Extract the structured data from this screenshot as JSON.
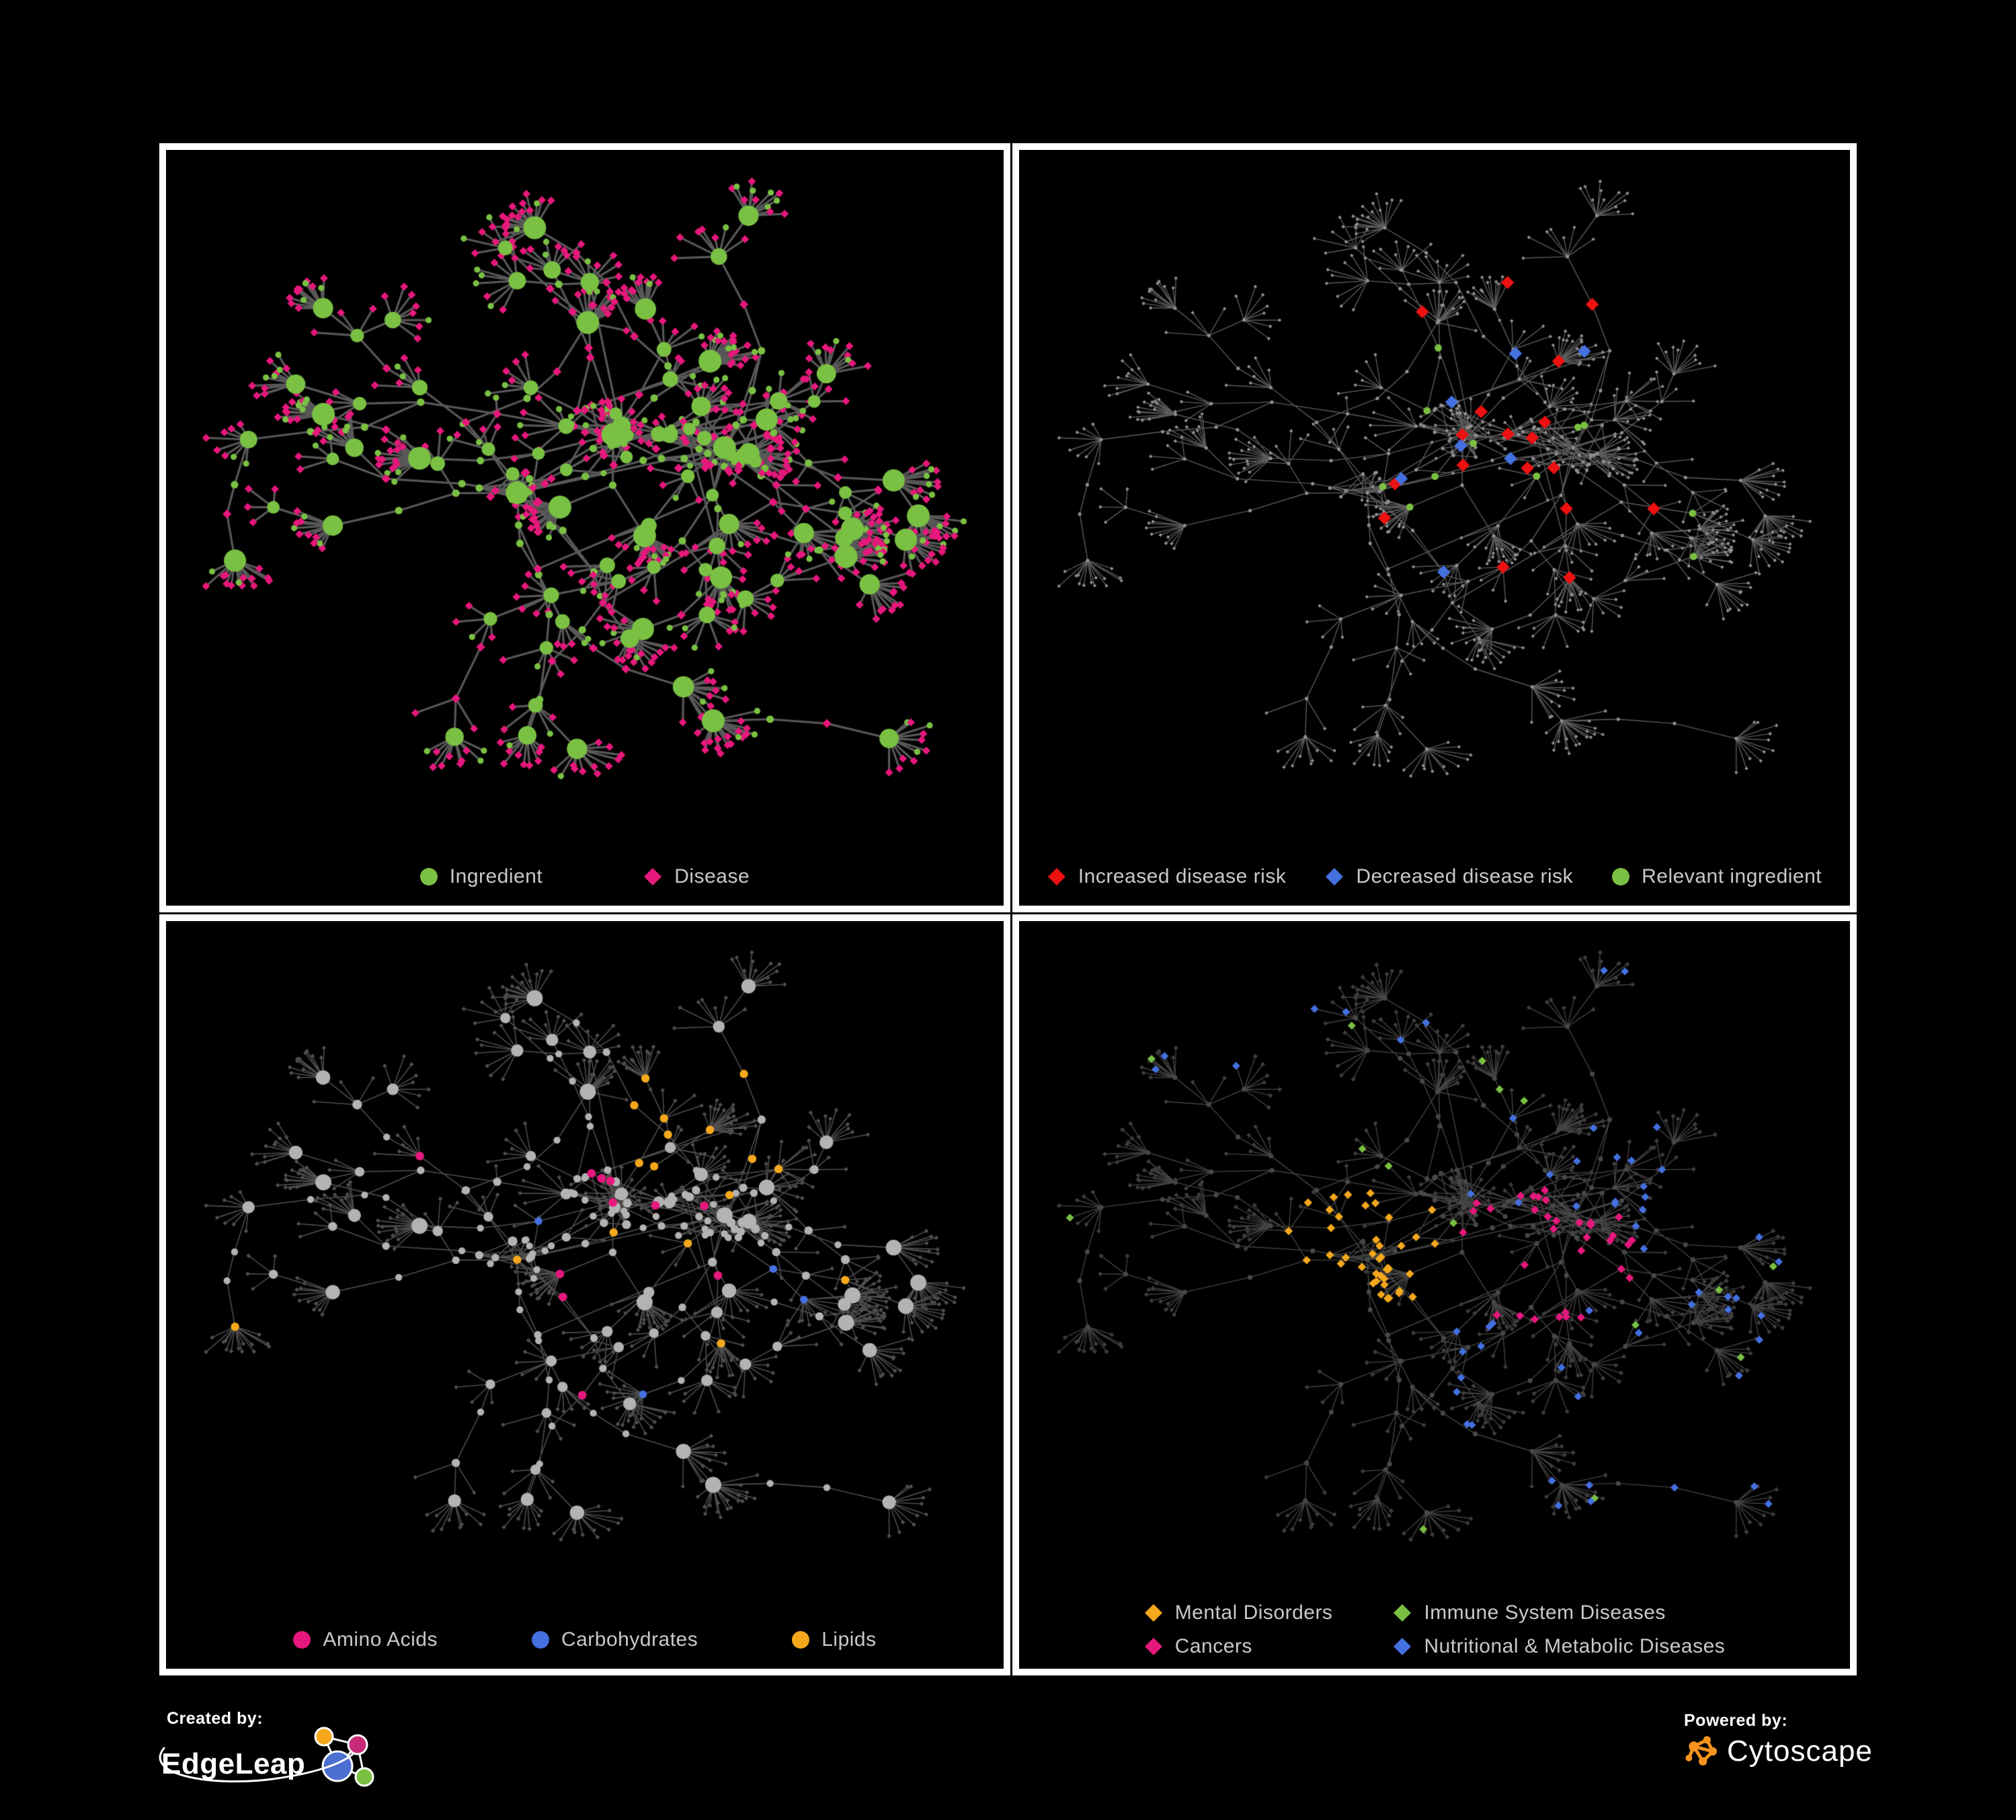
{
  "figure": {
    "background": "#000000",
    "frame_color": "#ffffff",
    "legend_text_color": "#c9c9c9"
  },
  "panels": [
    {
      "name": "ingredient-disease",
      "legend": [
        {
          "label": "Ingredient",
          "shape": "circle",
          "color": "#7AC143"
        },
        {
          "label": "Disease",
          "shape": "diamond",
          "color": "#E6187C"
        }
      ]
    },
    {
      "name": "disease-risk",
      "legend": [
        {
          "label": "Increased disease risk",
          "shape": "diamond",
          "color": "#ED1111"
        },
        {
          "label": "Decreased disease risk",
          "shape": "diamond",
          "color": "#4470E0"
        },
        {
          "label": "Relevant ingredient",
          "shape": "circle",
          "color": "#7AC143"
        }
      ]
    },
    {
      "name": "nutrient-classes",
      "legend": [
        {
          "label": "Amino Acids",
          "shape": "circle",
          "color": "#E6187C"
        },
        {
          "label": "Carbohydrates",
          "shape": "circle",
          "color": "#4470E0"
        },
        {
          "label": "Lipids",
          "shape": "circle",
          "color": "#F5A81C"
        }
      ]
    },
    {
      "name": "disease-classes",
      "legend": [
        {
          "label": "Mental Disorders",
          "shape": "diamond",
          "color": "#F5A81C"
        },
        {
          "label": "Immune System Diseases",
          "shape": "diamond",
          "color": "#7AC143"
        },
        {
          "label": "Cancers",
          "shape": "diamond",
          "color": "#E6187C"
        },
        {
          "label": "Nutritional & Metabolic Diseases",
          "shape": "diamond",
          "color": "#4470E0"
        }
      ]
    }
  ],
  "footer": {
    "created_by": "Created by:",
    "brand": "EdgeLeap",
    "powered_by": "Powered by:",
    "engine": "Cytoscape",
    "edgeleap_colors": {
      "orange": "#F5A81C",
      "magenta": "#C72B77",
      "blue": "#4A6FD0",
      "green": "#7AC143",
      "line": "#ffffff"
    },
    "cytoscape_color": "#F7941E"
  },
  "network": {
    "seed": 7,
    "node_colors": {
      "green": "#7AC143",
      "magenta": "#E6187C",
      "red": "#ED1111",
      "blue": "#4470E0",
      "orange": "#F5A81C",
      "gray_hi": "#ABABAB",
      "gray_light": "#B3B3B3",
      "gray_mid": "#8F8F8F",
      "gray_dark": "#4E4E4E",
      "gray_darker": "#3D3D3D",
      "gray_p4": "#484848"
    },
    "edge_styles": [
      {
        "color": "#5D5D5D",
        "alpha": 0.95,
        "width": 3.2
      },
      {
        "color": "#7A7A7A",
        "alpha": 0.75,
        "width": 1.4
      },
      {
        "color": "#9A9A9A",
        "alpha": 0.5,
        "width": 1.6
      },
      {
        "color": "#6F6F6F",
        "alpha": 0.6,
        "width": 1.4
      }
    ]
  }
}
